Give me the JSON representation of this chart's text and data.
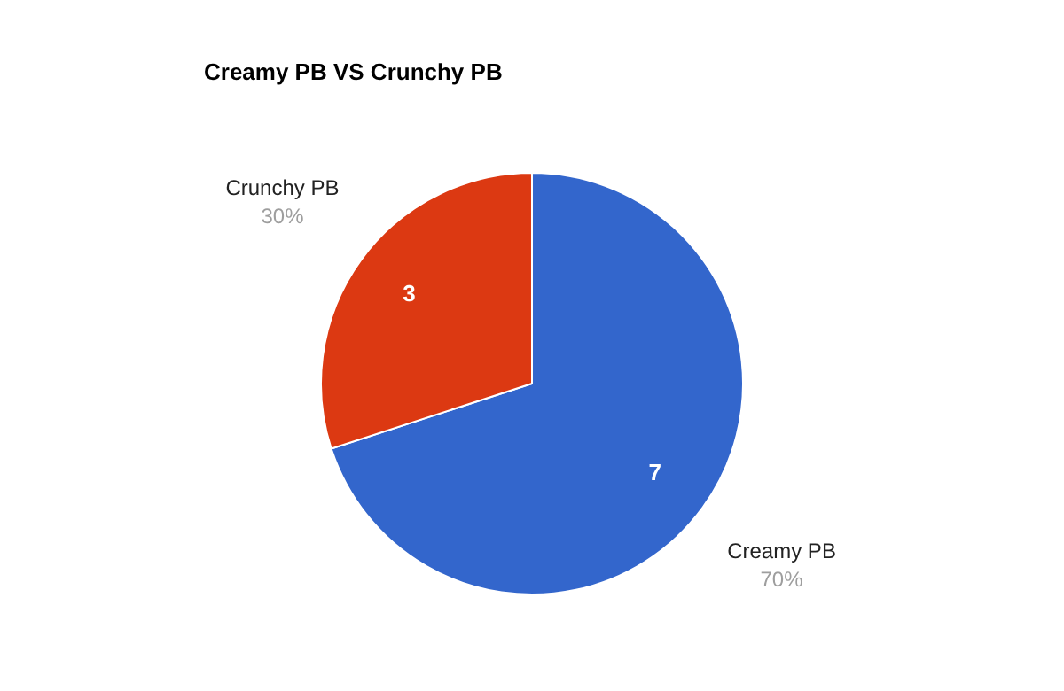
{
  "chart_data": {
    "type": "pie",
    "title": "Creamy PB VS Crunchy PB",
    "categories": [
      "Creamy PB",
      "Crunchy PB"
    ],
    "values": [
      70,
      30
    ],
    "colors": [
      "#3366cc",
      "#dc3912"
    ],
    "value_labels": [
      "70%",
      "30%"
    ],
    "annotations": [
      {
        "text": "7",
        "x": "Creamy PB"
      },
      {
        "text": "3",
        "x": "Crunchy PB"
      }
    ],
    "legend": false
  }
}
